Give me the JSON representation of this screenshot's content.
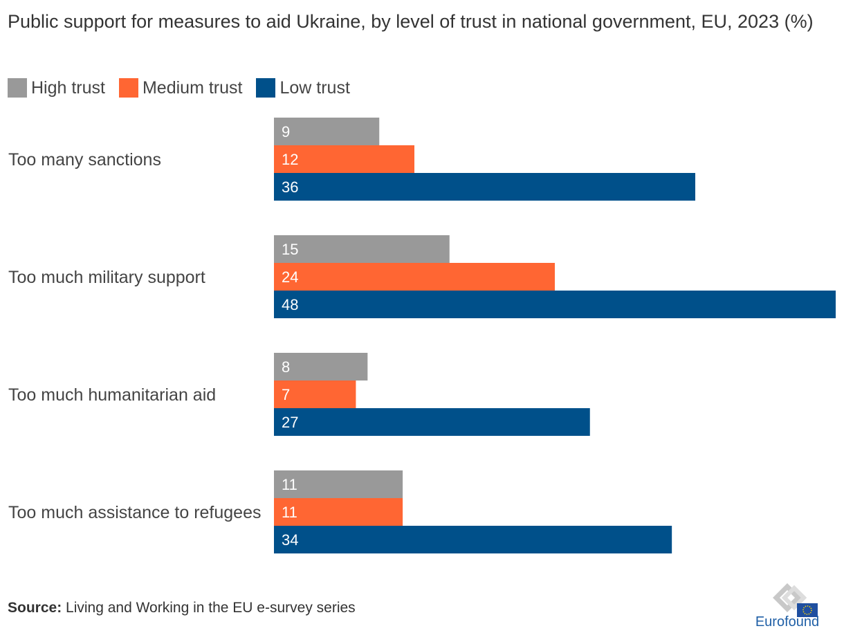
{
  "title": "Public support for measures to aid Ukraine, by level of trust in national government, EU, 2023 (%)",
  "legend": [
    {
      "label": "High trust",
      "color": "#999999"
    },
    {
      "label": "Medium trust",
      "color": "#ff6633"
    },
    {
      "label": "Low trust",
      "color": "#00508a"
    }
  ],
  "chart_data": {
    "type": "bar",
    "orientation": "horizontal",
    "title": "Public support for measures to aid Ukraine, by level of trust in national government, EU, 2023 (%)",
    "categories": [
      "Too many sanctions",
      "Too much military support",
      "Too much humanitarian aid",
      "Too much assistance to refugees"
    ],
    "series": [
      {
        "name": "High trust",
        "color": "#999999",
        "values": [
          9,
          15,
          8,
          11
        ]
      },
      {
        "name": "Medium trust",
        "color": "#ff6633",
        "values": [
          12,
          24,
          7,
          11
        ]
      },
      {
        "name": "Low trust",
        "color": "#00508a",
        "values": [
          36,
          48,
          27,
          34
        ]
      }
    ],
    "xlim": [
      0,
      48
    ],
    "xlabel": "",
    "ylabel": "",
    "grid": false,
    "legend_position": "top-left"
  },
  "source": {
    "label": "Source:",
    "text": "Living and Working in the EU e-survey series"
  },
  "logo": {
    "text": "Eurofound"
  }
}
